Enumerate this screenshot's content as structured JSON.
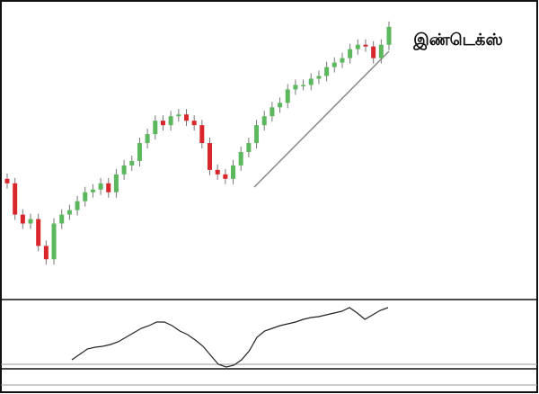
{
  "chart_data": [
    {
      "type": "candlestick",
      "title": "இண்டெக்ஸ்",
      "open": [
        135,
        130,
        95,
        85,
        90,
        60,
        45,
        85,
        95,
        100,
        110,
        120,
        123,
        130,
        120,
        140,
        150,
        155,
        175,
        185,
        200,
        195,
        205,
        207,
        200,
        195,
        175,
        145,
        140,
        135,
        150,
        165,
        175,
        195,
        205,
        215,
        220,
        235,
        240,
        240,
        247,
        250,
        260,
        265,
        270,
        280,
        285,
        283,
        270,
        285
      ],
      "high": [
        141,
        136,
        101,
        96,
        96,
        66,
        91,
        101,
        106,
        116,
        126,
        129,
        136,
        136,
        146,
        156,
        161,
        181,
        191,
        206,
        206,
        211,
        213,
        213,
        206,
        201,
        181,
        151,
        146,
        156,
        171,
        181,
        201,
        211,
        221,
        226,
        241,
        246,
        246,
        253,
        256,
        266,
        271,
        276,
        286,
        291,
        291,
        289,
        291,
        311
      ],
      "low": [
        124,
        89,
        79,
        79,
        54,
        39,
        39,
        79,
        89,
        94,
        104,
        114,
        117,
        114,
        114,
        134,
        144,
        149,
        169,
        179,
        189,
        189,
        199,
        194,
        189,
        169,
        139,
        134,
        129,
        129,
        144,
        159,
        169,
        189,
        199,
        209,
        214,
        229,
        234,
        234,
        241,
        244,
        254,
        259,
        264,
        274,
        277,
        264,
        264,
        279
      ],
      "close": [
        130,
        95,
        85,
        90,
        60,
        45,
        85,
        95,
        100,
        110,
        120,
        123,
        130,
        120,
        140,
        150,
        155,
        175,
        185,
        200,
        195,
        205,
        207,
        200,
        195,
        175,
        145,
        140,
        135,
        150,
        165,
        175,
        195,
        205,
        215,
        220,
        235,
        240,
        240,
        247,
        250,
        260,
        265,
        270,
        280,
        285,
        283,
        270,
        285,
        305
      ],
      "up_color": "#5cb85c",
      "down_color": "#d9262b",
      "ylim": [
        0,
        335
      ]
    },
    {
      "type": "line",
      "color": "#222222",
      "values": [
        10,
        16,
        22,
        24,
        25,
        27,
        30,
        35,
        40,
        45,
        48,
        52,
        52,
        48,
        42,
        38,
        32,
        25,
        15,
        5,
        2,
        4,
        10,
        20,
        35,
        42,
        45,
        48,
        50,
        52,
        55,
        57,
        58,
        60,
        62,
        64,
        68,
        62,
        55,
        60,
        65,
        68
      ],
      "ylim": [
        0,
        70
      ]
    }
  ]
}
